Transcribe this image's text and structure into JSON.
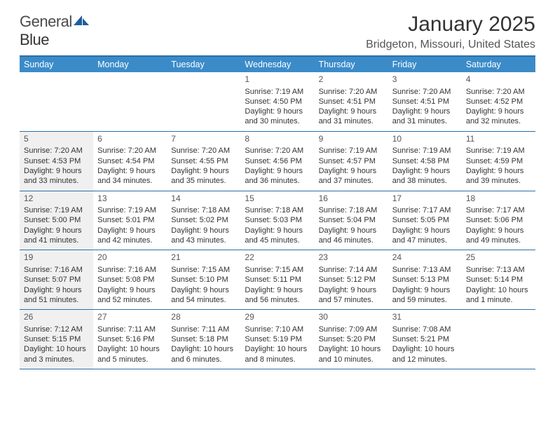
{
  "logo": {
    "text1": "General",
    "text2": "Blue"
  },
  "title": "January 2025",
  "location": "Bridgeton, Missouri, United States",
  "colors": {
    "header_bg": "#3b8bc9",
    "header_text": "#ffffff",
    "border": "#2b6fa8",
    "gray_bg": "#f0f0f0",
    "text": "#333333",
    "logo_blue": "#1e5f9e"
  },
  "day_names": [
    "Sunday",
    "Monday",
    "Tuesday",
    "Wednesday",
    "Thursday",
    "Friday",
    "Saturday"
  ],
  "weeks": [
    [
      {
        "num": "",
        "sunrise": "",
        "sunset": "",
        "daylight": "",
        "gray": false
      },
      {
        "num": "",
        "sunrise": "",
        "sunset": "",
        "daylight": "",
        "gray": false
      },
      {
        "num": "",
        "sunrise": "",
        "sunset": "",
        "daylight": "",
        "gray": false
      },
      {
        "num": "1",
        "sunrise": "Sunrise: 7:19 AM",
        "sunset": "Sunset: 4:50 PM",
        "daylight": "Daylight: 9 hours and 30 minutes.",
        "gray": false
      },
      {
        "num": "2",
        "sunrise": "Sunrise: 7:20 AM",
        "sunset": "Sunset: 4:51 PM",
        "daylight": "Daylight: 9 hours and 31 minutes.",
        "gray": false
      },
      {
        "num": "3",
        "sunrise": "Sunrise: 7:20 AM",
        "sunset": "Sunset: 4:51 PM",
        "daylight": "Daylight: 9 hours and 31 minutes.",
        "gray": false
      },
      {
        "num": "4",
        "sunrise": "Sunrise: 7:20 AM",
        "sunset": "Sunset: 4:52 PM",
        "daylight": "Daylight: 9 hours and 32 minutes.",
        "gray": false
      }
    ],
    [
      {
        "num": "5",
        "sunrise": "Sunrise: 7:20 AM",
        "sunset": "Sunset: 4:53 PM",
        "daylight": "Daylight: 9 hours and 33 minutes.",
        "gray": true
      },
      {
        "num": "6",
        "sunrise": "Sunrise: 7:20 AM",
        "sunset": "Sunset: 4:54 PM",
        "daylight": "Daylight: 9 hours and 34 minutes.",
        "gray": false
      },
      {
        "num": "7",
        "sunrise": "Sunrise: 7:20 AM",
        "sunset": "Sunset: 4:55 PM",
        "daylight": "Daylight: 9 hours and 35 minutes.",
        "gray": false
      },
      {
        "num": "8",
        "sunrise": "Sunrise: 7:20 AM",
        "sunset": "Sunset: 4:56 PM",
        "daylight": "Daylight: 9 hours and 36 minutes.",
        "gray": false
      },
      {
        "num": "9",
        "sunrise": "Sunrise: 7:19 AM",
        "sunset": "Sunset: 4:57 PM",
        "daylight": "Daylight: 9 hours and 37 minutes.",
        "gray": false
      },
      {
        "num": "10",
        "sunrise": "Sunrise: 7:19 AM",
        "sunset": "Sunset: 4:58 PM",
        "daylight": "Daylight: 9 hours and 38 minutes.",
        "gray": false
      },
      {
        "num": "11",
        "sunrise": "Sunrise: 7:19 AM",
        "sunset": "Sunset: 4:59 PM",
        "daylight": "Daylight: 9 hours and 39 minutes.",
        "gray": false
      }
    ],
    [
      {
        "num": "12",
        "sunrise": "Sunrise: 7:19 AM",
        "sunset": "Sunset: 5:00 PM",
        "daylight": "Daylight: 9 hours and 41 minutes.",
        "gray": true
      },
      {
        "num": "13",
        "sunrise": "Sunrise: 7:19 AM",
        "sunset": "Sunset: 5:01 PM",
        "daylight": "Daylight: 9 hours and 42 minutes.",
        "gray": false
      },
      {
        "num": "14",
        "sunrise": "Sunrise: 7:18 AM",
        "sunset": "Sunset: 5:02 PM",
        "daylight": "Daylight: 9 hours and 43 minutes.",
        "gray": false
      },
      {
        "num": "15",
        "sunrise": "Sunrise: 7:18 AM",
        "sunset": "Sunset: 5:03 PM",
        "daylight": "Daylight: 9 hours and 45 minutes.",
        "gray": false
      },
      {
        "num": "16",
        "sunrise": "Sunrise: 7:18 AM",
        "sunset": "Sunset: 5:04 PM",
        "daylight": "Daylight: 9 hours and 46 minutes.",
        "gray": false
      },
      {
        "num": "17",
        "sunrise": "Sunrise: 7:17 AM",
        "sunset": "Sunset: 5:05 PM",
        "daylight": "Daylight: 9 hours and 47 minutes.",
        "gray": false
      },
      {
        "num": "18",
        "sunrise": "Sunrise: 7:17 AM",
        "sunset": "Sunset: 5:06 PM",
        "daylight": "Daylight: 9 hours and 49 minutes.",
        "gray": false
      }
    ],
    [
      {
        "num": "19",
        "sunrise": "Sunrise: 7:16 AM",
        "sunset": "Sunset: 5:07 PM",
        "daylight": "Daylight: 9 hours and 51 minutes.",
        "gray": true
      },
      {
        "num": "20",
        "sunrise": "Sunrise: 7:16 AM",
        "sunset": "Sunset: 5:08 PM",
        "daylight": "Daylight: 9 hours and 52 minutes.",
        "gray": false
      },
      {
        "num": "21",
        "sunrise": "Sunrise: 7:15 AM",
        "sunset": "Sunset: 5:10 PM",
        "daylight": "Daylight: 9 hours and 54 minutes.",
        "gray": false
      },
      {
        "num": "22",
        "sunrise": "Sunrise: 7:15 AM",
        "sunset": "Sunset: 5:11 PM",
        "daylight": "Daylight: 9 hours and 56 minutes.",
        "gray": false
      },
      {
        "num": "23",
        "sunrise": "Sunrise: 7:14 AM",
        "sunset": "Sunset: 5:12 PM",
        "daylight": "Daylight: 9 hours and 57 minutes.",
        "gray": false
      },
      {
        "num": "24",
        "sunrise": "Sunrise: 7:13 AM",
        "sunset": "Sunset: 5:13 PM",
        "daylight": "Daylight: 9 hours and 59 minutes.",
        "gray": false
      },
      {
        "num": "25",
        "sunrise": "Sunrise: 7:13 AM",
        "sunset": "Sunset: 5:14 PM",
        "daylight": "Daylight: 10 hours and 1 minute.",
        "gray": false
      }
    ],
    [
      {
        "num": "26",
        "sunrise": "Sunrise: 7:12 AM",
        "sunset": "Sunset: 5:15 PM",
        "daylight": "Daylight: 10 hours and 3 minutes.",
        "gray": true
      },
      {
        "num": "27",
        "sunrise": "Sunrise: 7:11 AM",
        "sunset": "Sunset: 5:16 PM",
        "daylight": "Daylight: 10 hours and 5 minutes.",
        "gray": false
      },
      {
        "num": "28",
        "sunrise": "Sunrise: 7:11 AM",
        "sunset": "Sunset: 5:18 PM",
        "daylight": "Daylight: 10 hours and 6 minutes.",
        "gray": false
      },
      {
        "num": "29",
        "sunrise": "Sunrise: 7:10 AM",
        "sunset": "Sunset: 5:19 PM",
        "daylight": "Daylight: 10 hours and 8 minutes.",
        "gray": false
      },
      {
        "num": "30",
        "sunrise": "Sunrise: 7:09 AM",
        "sunset": "Sunset: 5:20 PM",
        "daylight": "Daylight: 10 hours and 10 minutes.",
        "gray": false
      },
      {
        "num": "31",
        "sunrise": "Sunrise: 7:08 AM",
        "sunset": "Sunset: 5:21 PM",
        "daylight": "Daylight: 10 hours and 12 minutes.",
        "gray": false
      },
      {
        "num": "",
        "sunrise": "",
        "sunset": "",
        "daylight": "",
        "gray": false
      }
    ]
  ]
}
